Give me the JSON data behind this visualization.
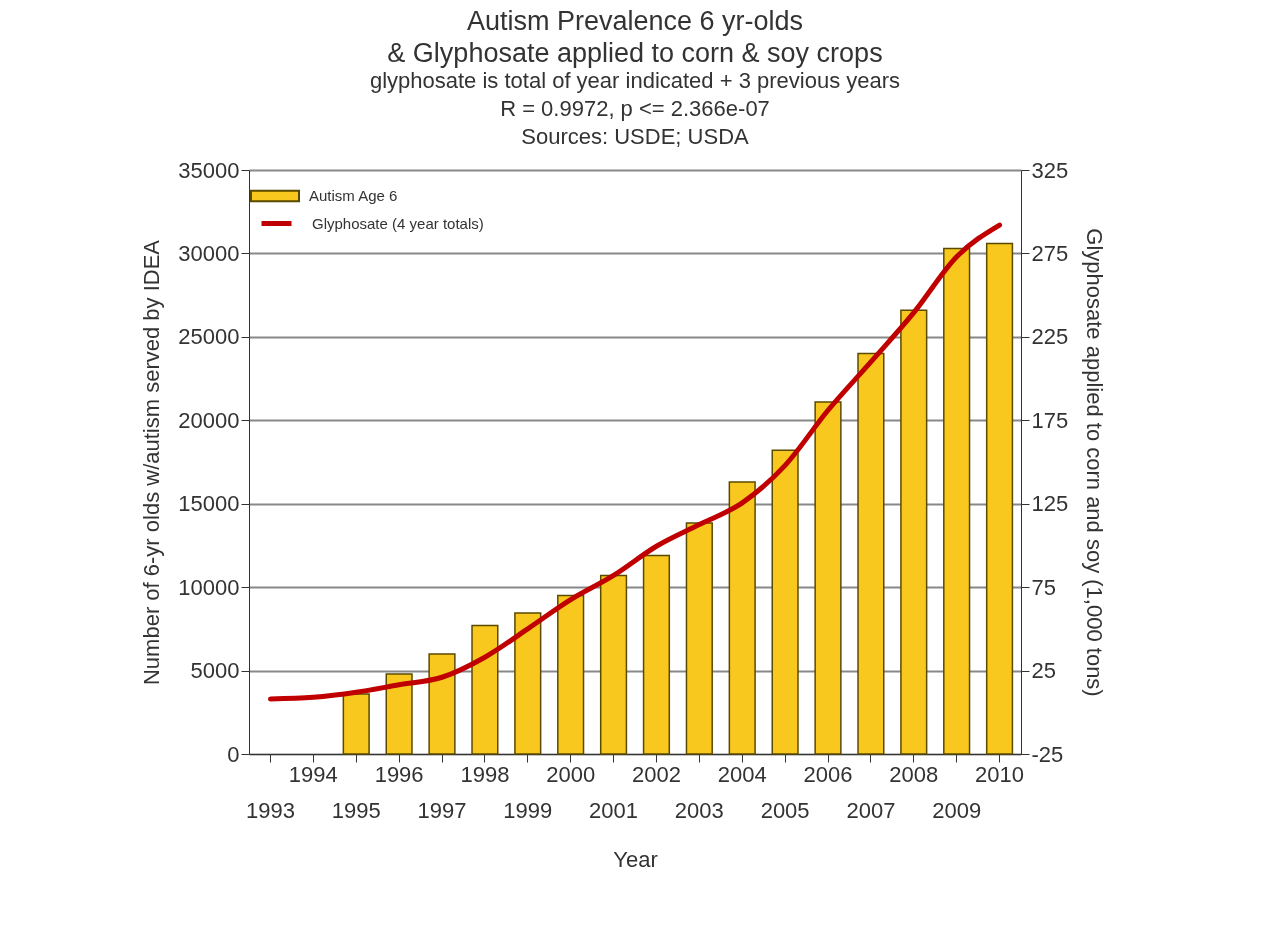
{
  "chart_data": {
    "type": "bar",
    "title": [
      "Autism Prevalence 6 yr-olds",
      "& Glyphosate applied to corn & soy crops"
    ],
    "subtitle": "glyphosate is total of year indicated + 3 previous years",
    "annotations": [
      "R = 0.9972, p <= 2.366e-07",
      "Sources: USDE; USDA"
    ],
    "xlabel": "Year",
    "ylabel": "Number of 6-yr olds w/autism served by IDEA",
    "y2label": "Glyphosate applied to corn and soy (1,000 tons)",
    "categories": [
      "1993",
      "1994",
      "1995",
      "1996",
      "1997",
      "1998",
      "1999",
      "2000",
      "2001",
      "2002",
      "2003",
      "2004",
      "2005",
      "2006",
      "2007",
      "2008",
      "2009",
      "2010"
    ],
    "series": [
      {
        "name": "Autism Age 6",
        "color": "#f9c81e",
        "values": [
          null,
          null,
          3600,
          4800,
          6000,
          7700,
          8450,
          9500,
          10700,
          11900,
          13850,
          16300,
          18200,
          21100,
          24000,
          26600,
          30300,
          30600
        ]
      },
      {
        "name": "Glyphosate (4 year totals)",
        "type": "line",
        "axis": "y2",
        "color": "#c00000",
        "values": [
          8,
          9,
          12,
          16.5,
          21,
          33,
          50,
          67.5,
          82,
          99.5,
          112.5,
          125.5,
          148,
          181,
          210,
          239.5,
          273,
          292
        ]
      }
    ],
    "ylim": [
      0,
      35000
    ],
    "yticks": [
      0,
      5000,
      10000,
      15000,
      20000,
      25000,
      30000,
      35000
    ],
    "y2lim": [
      -25,
      325
    ],
    "y2ticks": [
      -25,
      25,
      75,
      125,
      175,
      225,
      275,
      325
    ],
    "grid": "y",
    "legend": "top left"
  }
}
